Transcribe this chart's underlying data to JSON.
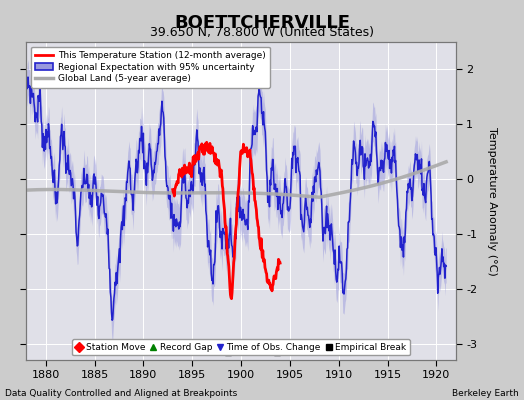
{
  "title": "BOETTCHERVILLE",
  "subtitle": "39.650 N, 78.800 W (United States)",
  "ylabel": "Temperature Anomaly (°C)",
  "xlabel_left": "Data Quality Controlled and Aligned at Breakpoints",
  "xlabel_right": "Berkeley Earth",
  "xlim": [
    1878,
    1922
  ],
  "ylim": [
    -3.3,
    2.5
  ],
  "yticks": [
    -3,
    -2,
    -1,
    0,
    1,
    2
  ],
  "xticks": [
    1880,
    1885,
    1890,
    1895,
    1900,
    1905,
    1910,
    1915,
    1920
  ],
  "bg_color": "#cccccc",
  "plot_bg_color": "#e0e0e8",
  "grid_color": "#ffffff",
  "empirical_breaks": [
    1898.7,
    1903.7
  ],
  "regional_color": "#2222cc",
  "regional_fill": "#9999dd",
  "station_color": "#ff0000",
  "global_color": "#aaaaaa",
  "title_fontsize": 13,
  "subtitle_fontsize": 9,
  "tick_fontsize": 8,
  "ylabel_fontsize": 8
}
